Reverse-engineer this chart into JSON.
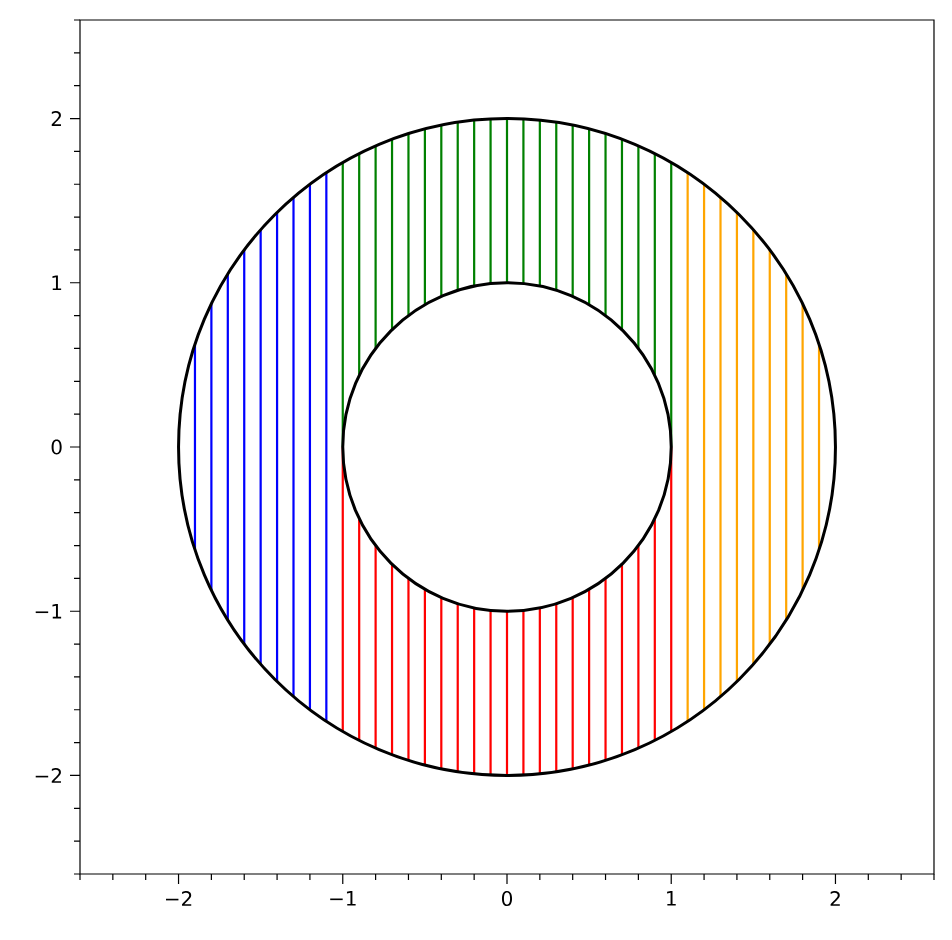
{
  "chart_data": {
    "type": "bar",
    "xlim": [
      -2.6,
      2.6
    ],
    "ylim": [
      -2.6,
      2.6
    ],
    "xticks": [
      {
        "value": -2.6,
        "label": null
      },
      {
        "value": -2.4,
        "label": null
      },
      {
        "value": -2.2,
        "label": null
      },
      {
        "value": -2,
        "label": "−2"
      },
      {
        "value": -1.8,
        "label": null
      },
      {
        "value": -1.6,
        "label": null
      },
      {
        "value": -1.4,
        "label": null
      },
      {
        "value": -1.2,
        "label": null
      },
      {
        "value": -1,
        "label": "−1"
      },
      {
        "value": -0.8,
        "label": null
      },
      {
        "value": -0.6,
        "label": null
      },
      {
        "value": -0.4,
        "label": null
      },
      {
        "value": -0.2,
        "label": null
      },
      0,
      {
        "value": 0.2,
        "label": null
      },
      {
        "value": 0.4,
        "label": null
      },
      {
        "value": 0.6,
        "label": null
      },
      {
        "value": 0.8,
        "label": null
      },
      1,
      {
        "value": 1.2,
        "label": null
      },
      {
        "value": 1.4,
        "label": null
      },
      {
        "value": 1.6,
        "label": null
      },
      {
        "value": 1.8,
        "label": null
      },
      2,
      {
        "value": 2.2,
        "label": null
      },
      {
        "value": 2.4,
        "label": null
      },
      {
        "value": 2.6,
        "label": null
      }
    ],
    "yticks": [
      {
        "value": -2.6,
        "label": null
      },
      {
        "value": -2.4,
        "label": null
      },
      {
        "value": -2.2,
        "label": null
      },
      {
        "value": -2,
        "label": "−2"
      },
      {
        "value": -1.8,
        "label": null
      },
      {
        "value": -1.6,
        "label": null
      },
      {
        "value": -1.4,
        "label": null
      },
      {
        "value": -1.2,
        "label": null
      },
      {
        "value": -1,
        "label": "−1"
      },
      {
        "value": -0.8,
        "label": null
      },
      {
        "value": -0.6,
        "label": null
      },
      {
        "value": -0.4,
        "label": null
      },
      {
        "value": -0.2,
        "label": null
      },
      0,
      {
        "value": 0.2,
        "label": null
      },
      {
        "value": 0.4,
        "label": null
      },
      {
        "value": 0.6,
        "label": null
      },
      {
        "value": 0.8,
        "label": null
      },
      1,
      {
        "value": 1.2,
        "label": null
      },
      {
        "value": 1.4,
        "label": null
      },
      {
        "value": 1.6,
        "label": null
      },
      {
        "value": 1.8,
        "label": null
      },
      2,
      {
        "value": 2.2,
        "label": null
      },
      {
        "value": 2.4,
        "label": null
      },
      {
        "value": 2.6,
        "label": null
      }
    ],
    "series": [
      {
        "color": "#0000ff",
        "x": [
          -1.9,
          -1.8,
          -1.7,
          -1.6,
          -1.5,
          -1.4,
          -1.3,
          -1.2,
          -1.1
        ],
        "base": [
          -0.62,
          -0.87,
          -1.05,
          -1.2,
          -1.32,
          -1.43,
          -1.52,
          -1.6,
          -1.67
        ],
        "values": [
          1.24,
          1.74,
          2.1,
          2.4,
          2.64,
          2.86,
          3.04,
          3.2,
          3.34
        ]
      },
      {
        "color": "#008000",
        "x": [
          -1,
          -0.9,
          -0.8,
          -0.7,
          -0.6,
          -0.5,
          -0.4,
          -0.3,
          -0.2,
          -0.1,
          0,
          0.1,
          0.2,
          0.3,
          0.4,
          0.5,
          0.6,
          0.7,
          0.8,
          0.9,
          1
        ],
        "base": [
          0,
          0.44,
          0.6,
          0.71,
          0.8,
          0.87,
          0.92,
          0.95,
          0.98,
          0.99,
          1,
          0.99,
          0.98,
          0.95,
          0.92,
          0.87,
          0.8,
          0.71,
          0.6,
          0.44,
          0
        ],
        "values": [
          1.73,
          1.35,
          1.23,
          1.16,
          1.11,
          1.07,
          1.04,
          1.03,
          1.01,
          1.01,
          1,
          1.01,
          1.01,
          1.03,
          1.04,
          1.07,
          1.11,
          1.16,
          1.23,
          1.35,
          1.73
        ]
      },
      {
        "color": "#ff0000",
        "x": [
          -1,
          -0.9,
          -0.8,
          -0.7,
          -0.6,
          -0.5,
          -0.4,
          -0.3,
          -0.2,
          -0.1,
          0,
          0.1,
          0.2,
          0.3,
          0.4,
          0.5,
          0.6,
          0.7,
          0.8,
          0.9,
          1
        ],
        "base": [
          -1.73,
          -1.79,
          -1.83,
          -1.87,
          -1.91,
          -1.94,
          -1.96,
          -1.98,
          -1.99,
          -2,
          -2,
          -2,
          -1.99,
          -1.98,
          -1.96,
          -1.94,
          -1.91,
          -1.87,
          -1.83,
          -1.79,
          -1.73
        ],
        "values": [
          1.73,
          1.35,
          1.23,
          1.16,
          1.11,
          1.07,
          1.04,
          1.03,
          1.01,
          1.01,
          1,
          1.01,
          1.01,
          1.03,
          1.04,
          1.07,
          1.11,
          1.16,
          1.23,
          1.35,
          1.73
        ]
      },
      {
        "color": "#ffa500",
        "x": [
          1.1,
          1.2,
          1.3,
          1.4,
          1.5,
          1.6,
          1.7,
          1.8,
          1.9
        ],
        "base": [
          -1.67,
          -1.6,
          -1.52,
          -1.43,
          -1.32,
          -1.2,
          -1.05,
          -0.87,
          -0.62
        ],
        "values": [
          3.34,
          3.2,
          3.04,
          2.86,
          2.64,
          2.4,
          2.1,
          1.74,
          1.24
        ]
      }
    ]
  }
}
